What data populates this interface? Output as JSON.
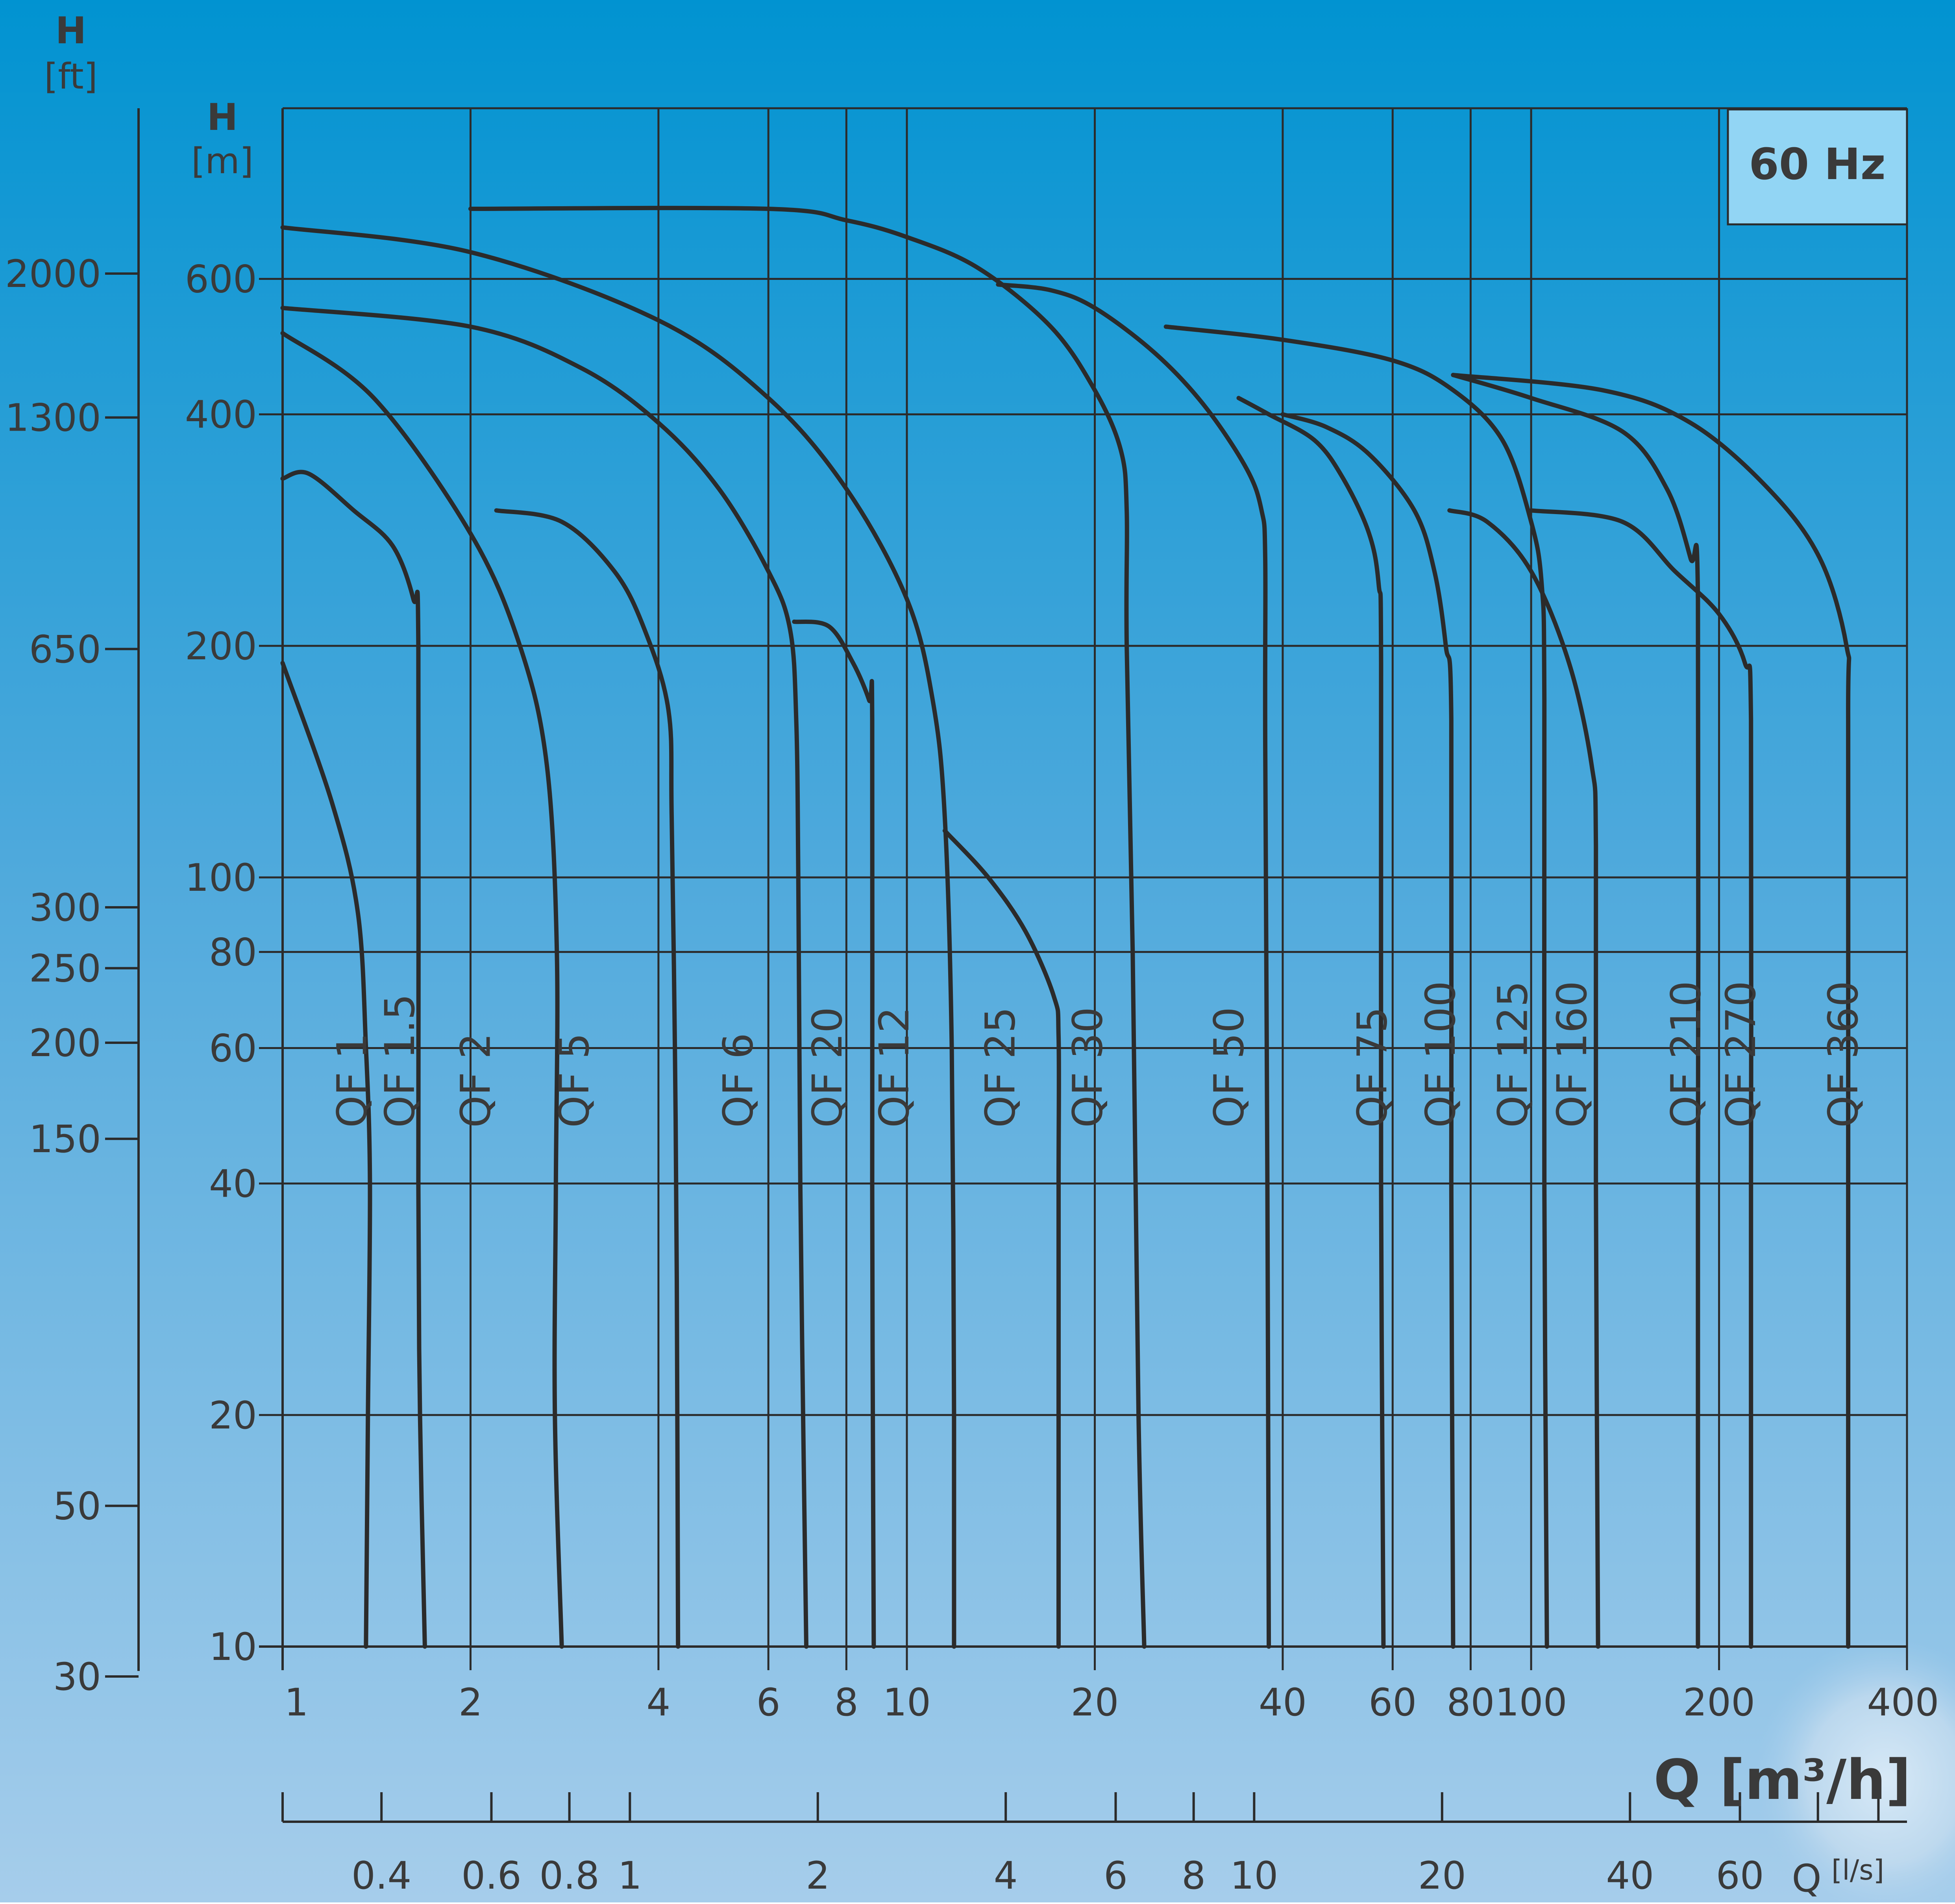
{
  "chart_data": {
    "type": "line",
    "x_scale": "log",
    "y_scale": "log",
    "xlim": [
      1,
      400
    ],
    "ylim": [
      10,
      1000
    ],
    "grid": true,
    "badge": "60 Hz",
    "y_label": {
      "symbol": "H",
      "unit": "[m]"
    },
    "y_label_ft": {
      "symbol": "H",
      "unit": "[ft]"
    },
    "x_label": "Q [m³/h]",
    "x_label_ls": "Q",
    "x_unit_ls": "[l/s]",
    "x_ticks": [
      {
        "v": 1,
        "label": "1"
      },
      {
        "v": 2,
        "label": "2"
      },
      {
        "v": 4,
        "label": "4"
      },
      {
        "v": 6,
        "label": "6"
      },
      {
        "v": 8,
        "label": "8"
      },
      {
        "v": 10,
        "label": "10"
      },
      {
        "v": 20,
        "label": "20"
      },
      {
        "v": 40,
        "label": "40"
      },
      {
        "v": 60,
        "label": "60"
      },
      {
        "v": 80,
        "label": "80"
      },
      {
        "v": 100,
        "label": "100"
      },
      {
        "v": 200,
        "label": "200"
      },
      {
        "v": 400,
        "label": "400"
      }
    ],
    "y_ticks": [
      {
        "v": 600,
        "label": "600"
      },
      {
        "v": 400,
        "label": "400"
      },
      {
        "v": 200,
        "label": "200"
      },
      {
        "v": 100,
        "label": "100"
      },
      {
        "v": 80,
        "label": "80"
      },
      {
        "v": 60,
        "label": "60"
      },
      {
        "v": 40,
        "label": "40"
      },
      {
        "v": 20,
        "label": "20"
      },
      {
        "v": 10,
        "label": "10"
      }
    ],
    "ft_ticks": [
      {
        "v": 2000,
        "label": "2000"
      },
      {
        "v": 1300,
        "label": "1300"
      },
      {
        "v": 650,
        "label": "650"
      },
      {
        "v": 300,
        "label": "300"
      },
      {
        "v": 250,
        "label": "250"
      },
      {
        "v": 200,
        "label": "200"
      },
      {
        "v": 150,
        "label": "150"
      },
      {
        "v": 50,
        "label": "50"
      },
      {
        "v": 30,
        "label": "30"
      }
    ],
    "ls_ticks": [
      {
        "v": 0.4,
        "label": "0.4"
      },
      {
        "v": 0.6,
        "label": "0.6"
      },
      {
        "v": 0.8,
        "label": "0.8"
      },
      {
        "v": 1,
        "label": "1"
      },
      {
        "v": 2,
        "label": "2"
      },
      {
        "v": 4,
        "label": "4"
      },
      {
        "v": 6,
        "label": "6"
      },
      {
        "v": 8,
        "label": "8"
      },
      {
        "v": 10,
        "label": "10"
      },
      {
        "v": 20,
        "label": "20"
      },
      {
        "v": 40,
        "label": "40"
      },
      {
        "v": 60,
        "label": "60"
      },
      {
        "v": 80,
        "label": ""
      },
      {
        "v": 100,
        "label": ""
      }
    ],
    "series": [
      {
        "name": "QF 1",
        "label_x": 1.3,
        "points": [
          [
            1,
            190
          ],
          [
            1.2,
            125
          ],
          [
            1.32,
            90
          ],
          [
            1.36,
            60
          ],
          [
            1.38,
            40
          ],
          [
            1.37,
            20
          ],
          [
            1.36,
            10
          ]
        ]
      },
      {
        "name": "QF 1.5",
        "label_x": 1.55,
        "points": [
          [
            1,
            330
          ],
          [
            1.1,
            335
          ],
          [
            1.3,
            300
          ],
          [
            1.5,
            270
          ],
          [
            1.62,
            230
          ],
          [
            1.65,
            200
          ],
          [
            1.65,
            40
          ],
          [
            1.66,
            20
          ],
          [
            1.69,
            10
          ]
        ]
      },
      {
        "name": "QF 2",
        "label_x": 2.05,
        "points": [
          [
            1,
            510
          ],
          [
            1.4,
            420
          ],
          [
            2,
            280
          ],
          [
            2.4,
            200
          ],
          [
            2.65,
            140
          ],
          [
            2.75,
            80
          ],
          [
            2.74,
            40
          ],
          [
            2.73,
            20
          ],
          [
            2.8,
            10
          ]
        ]
      },
      {
        "name": "QF 5",
        "label_x": 2.95,
        "points": [
          [
            2.2,
            300
          ],
          [
            2.8,
            290
          ],
          [
            3.4,
            250
          ],
          [
            3.8,
            210
          ],
          [
            4.15,
            165
          ],
          [
            4.2,
            120
          ],
          [
            4.25,
            60
          ],
          [
            4.28,
            30
          ],
          [
            4.3,
            10
          ]
        ]
      },
      {
        "name": "QF 6",
        "label_x": 5.4,
        "points": [
          [
            1,
            550
          ],
          [
            2,
            520
          ],
          [
            3,
            460
          ],
          [
            4,
            390
          ],
          [
            5,
            320
          ],
          [
            6,
            250
          ],
          [
            6.5,
            210
          ],
          [
            6.65,
            160
          ],
          [
            6.7,
            100
          ],
          [
            6.75,
            40
          ],
          [
            6.82,
            20
          ],
          [
            6.9,
            10
          ]
        ]
      },
      {
        "name": "QF 20",
        "label_x": 7.5,
        "points": [
          [
            6.6,
            215
          ],
          [
            7.5,
            212
          ],
          [
            8.2,
            190
          ],
          [
            8.7,
            170
          ],
          [
            8.8,
            160
          ],
          [
            8.8,
            40
          ],
          [
            8.82,
            20
          ],
          [
            8.85,
            10
          ]
        ]
      },
      {
        "name": "QF 12",
        "label_x": 9.6,
        "points": [
          [
            1,
            700
          ],
          [
            2,
            650
          ],
          [
            4,
            530
          ],
          [
            6,
            420
          ],
          [
            8,
            320
          ],
          [
            10,
            230
          ],
          [
            11,
            170
          ],
          [
            11.5,
            120
          ],
          [
            11.8,
            60
          ],
          [
            11.9,
            20
          ],
          [
            11.9,
            10
          ]
        ]
      },
      {
        "name": "QF 25",
        "label_x": 14.2,
        "points": [
          [
            11.5,
            115
          ],
          [
            13.5,
            100
          ],
          [
            15.5,
            85
          ],
          [
            17.2,
            70
          ],
          [
            17.5,
            62
          ],
          [
            17.5,
            40
          ],
          [
            17.5,
            20
          ],
          [
            17.5,
            10
          ]
        ]
      },
      {
        "name": "QF 30",
        "label_x": 19.6,
        "points": [
          [
            2,
            740
          ],
          [
            6,
            740
          ],
          [
            8,
            715
          ],
          [
            10,
            680
          ],
          [
            13,
            620
          ],
          [
            17,
            520
          ],
          [
            20,
            430
          ],
          [
            22,
            360
          ],
          [
            22.5,
            300
          ],
          [
            22.5,
            200
          ],
          [
            23,
            80
          ],
          [
            23.5,
            20
          ],
          [
            24,
            10
          ]
        ]
      },
      {
        "name": "QF 50",
        "label_x": 33,
        "points": [
          [
            14,
            590
          ],
          [
            17,
            580
          ],
          [
            20,
            550
          ],
          [
            25,
            480
          ],
          [
            30,
            410
          ],
          [
            35,
            340
          ],
          [
            37,
            300
          ],
          [
            37.5,
            260
          ],
          [
            37.5,
            150
          ],
          [
            37.8,
            40
          ],
          [
            38,
            10
          ]
        ]
      },
      {
        "name": "QF 75",
        "label_x": 56,
        "points": [
          [
            34,
            420
          ],
          [
            38,
            400
          ],
          [
            45,
            370
          ],
          [
            50,
            330
          ],
          [
            55,
            280
          ],
          [
            57,
            240
          ],
          [
            57.5,
            190
          ],
          [
            57.5,
            40
          ],
          [
            58,
            10
          ]
        ]
      },
      {
        "name": "QF 100",
        "label_x": 72,
        "points": [
          [
            40,
            400
          ],
          [
            47,
            385
          ],
          [
            55,
            355
          ],
          [
            65,
            300
          ],
          [
            70,
            250
          ],
          [
            73,
            200
          ],
          [
            74.5,
            160
          ],
          [
            74.5,
            40
          ],
          [
            75,
            10
          ]
        ]
      },
      {
        "name": "QF 125",
        "label_x": 94,
        "points": [
          [
            26,
            520
          ],
          [
            40,
            500
          ],
          [
            60,
            470
          ],
          [
            75,
            430
          ],
          [
            90,
            370
          ],
          [
            100,
            290
          ],
          [
            104,
            240
          ],
          [
            105,
            170
          ],
          [
            105,
            40
          ],
          [
            106,
            10
          ]
        ]
      },
      {
        "name": "QF 160",
        "label_x": 117,
        "points": [
          [
            74,
            300
          ],
          [
            85,
            290
          ],
          [
            100,
            250
          ],
          [
            115,
            190
          ],
          [
            125,
            140
          ],
          [
            127,
            110
          ],
          [
            127,
            40
          ],
          [
            128,
            10
          ]
        ]
      },
      {
        "name": "QF 210",
        "label_x": 178,
        "points": [
          [
            75,
            450
          ],
          [
            100,
            420
          ],
          [
            140,
            380
          ],
          [
            165,
            320
          ],
          [
            180,
            260
          ],
          [
            185,
            230
          ],
          [
            185,
            40
          ],
          [
            185,
            10
          ]
        ]
      },
      {
        "name": "QF 270",
        "label_x": 218,
        "points": [
          [
            100,
            300
          ],
          [
            140,
            290
          ],
          [
            170,
            250
          ],
          [
            200,
            220
          ],
          [
            220,
            190
          ],
          [
            225,
            160
          ],
          [
            225,
            40
          ],
          [
            225,
            10
          ]
        ]
      },
      {
        "name": "QF 360",
        "label_x": 318,
        "points": [
          [
            75,
            450
          ],
          [
            130,
            430
          ],
          [
            180,
            390
          ],
          [
            240,
            320
          ],
          [
            290,
            260
          ],
          [
            320,
            200
          ],
          [
            322,
            160
          ],
          [
            322,
            40
          ],
          [
            322,
            10
          ]
        ]
      }
    ]
  }
}
